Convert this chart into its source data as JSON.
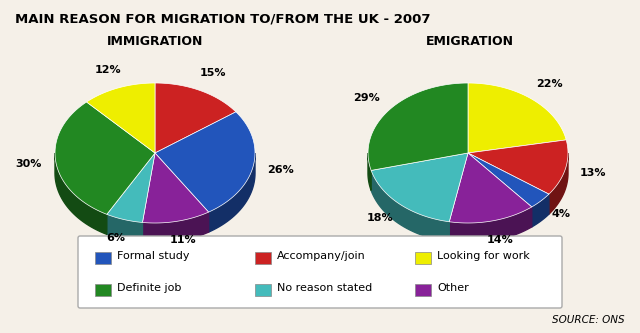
{
  "title": "MAIN REASON FOR MIGRATION TO/FROM THE UK - 2007",
  "immigration_title": "IMMIGRATION",
  "emigration_title": "EMIGRATION",
  "source": "SOURCE: ONS",
  "categories": [
    "Formal study",
    "Accompany/join",
    "Looking for work",
    "Definite job",
    "No reason stated",
    "Other"
  ],
  "colors": [
    "#2255bb",
    "#cc2222",
    "#eeee00",
    "#228822",
    "#44bbbb",
    "#882299"
  ],
  "immigration_values": [
    26,
    15,
    12,
    30,
    6,
    11
  ],
  "emigration_values": [
    4,
    13,
    22,
    29,
    18,
    14
  ],
  "immigration_labels": [
    "26%",
    "15%",
    "12%",
    "30%",
    "6%",
    "11%"
  ],
  "emigration_labels": [
    "4%",
    "13%",
    "22%",
    "29%",
    "18%",
    "14%"
  ],
  "bg_color": "#f5f0e8",
  "imm_order": [
    1,
    0,
    5,
    4,
    3,
    2
  ],
  "emm_order": [
    2,
    1,
    0,
    5,
    4,
    3
  ]
}
